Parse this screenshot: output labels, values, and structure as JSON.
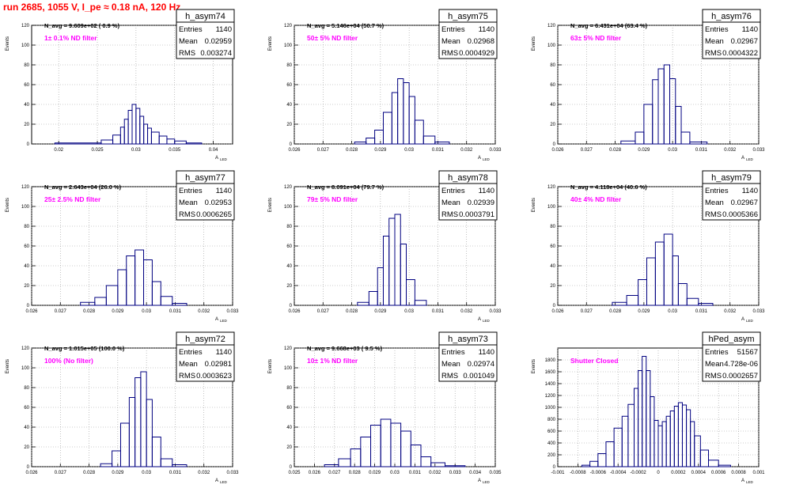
{
  "header": {
    "title": "run 2685,  1055 V, I_pe ≈ 0.18 nA, 120 Hz",
    "title_color": "#ff0000"
  },
  "common": {
    "ylabel": "Events",
    "xlabel": "A",
    "xlabel_sub": "LED",
    "stat_entries_label": "Entries",
    "stat_mean_label": "Mean",
    "stat_rms_label": "RMS",
    "hist_color": "#000080",
    "annotation_color": "#ff00ff"
  },
  "chart_data": [
    {
      "type": "histogram",
      "name": "h_asym74",
      "navg": "N_avg = 9.609e+02 ( 0.9 %)",
      "filter": "1± 0.1% ND filter",
      "entries": "1140",
      "mean": "0.02959",
      "rms": "0.003274",
      "xlim": [
        0.0165,
        0.0425
      ],
      "ylim": [
        0,
        120
      ],
      "xticks": [
        0.02,
        0.025,
        0.03,
        0.035,
        0.04
      ],
      "xtick_labels": [
        "0.02",
        "0.025",
        "0.03",
        "0.035",
        "0.04"
      ],
      "yticks": [
        0,
        20,
        40,
        60,
        80,
        100,
        120
      ],
      "bins": [
        [
          0.0195,
          0.0255,
          1
        ],
        [
          0.0255,
          0.027,
          4
        ],
        [
          0.027,
          0.028,
          9
        ],
        [
          0.028,
          0.0285,
          17
        ],
        [
          0.0285,
          0.029,
          25
        ],
        [
          0.029,
          0.0295,
          34
        ],
        [
          0.0295,
          0.03,
          40
        ],
        [
          0.03,
          0.0305,
          36
        ],
        [
          0.0305,
          0.031,
          28
        ],
        [
          0.031,
          0.0315,
          20
        ],
        [
          0.0315,
          0.032,
          16
        ],
        [
          0.032,
          0.033,
          12
        ],
        [
          0.033,
          0.034,
          8
        ],
        [
          0.034,
          0.035,
          5
        ],
        [
          0.035,
          0.0365,
          3
        ],
        [
          0.0365,
          0.0385,
          1
        ]
      ]
    },
    {
      "type": "histogram",
      "name": "h_asym75",
      "navg": "N_avg = 5.146e+04 (50.7 %)",
      "filter": "50± 5% ND filter",
      "entries": "1140",
      "mean": "0.02968",
      "rms": "0.0004929",
      "xlim": [
        0.026,
        0.033
      ],
      "ylim": [
        0,
        120
      ],
      "xticks": [
        0.026,
        0.027,
        0.028,
        0.029,
        0.03,
        0.031,
        0.032,
        0.033
      ],
      "xtick_labels": [
        "0.026",
        "0.027",
        "0.028",
        "0.029",
        "0.03",
        "0.031",
        "0.032",
        "0.033"
      ],
      "yticks": [
        0,
        20,
        40,
        60,
        80,
        100,
        120
      ],
      "bins": [
        [
          0.0281,
          0.0285,
          2
        ],
        [
          0.0285,
          0.0288,
          6
        ],
        [
          0.0288,
          0.0291,
          14
        ],
        [
          0.0291,
          0.0294,
          32
        ],
        [
          0.0294,
          0.0296,
          52
        ],
        [
          0.0296,
          0.0298,
          66
        ],
        [
          0.0298,
          0.03,
          62
        ],
        [
          0.03,
          0.0302,
          48
        ],
        [
          0.0302,
          0.0305,
          24
        ],
        [
          0.0305,
          0.0309,
          8
        ],
        [
          0.0309,
          0.0314,
          2
        ]
      ]
    },
    {
      "type": "histogram",
      "name": "h_asym76",
      "navg": "N_avg = 6.431e+04 (63.4 %)",
      "filter": "63± 5% ND filter",
      "entries": "1140",
      "mean": "0.02967",
      "rms": "0.0004322",
      "xlim": [
        0.026,
        0.033
      ],
      "ylim": [
        0,
        120
      ],
      "xticks": [
        0.026,
        0.027,
        0.028,
        0.029,
        0.03,
        0.031,
        0.032,
        0.033
      ],
      "xtick_labels": [
        "0.026",
        "0.027",
        "0.028",
        "0.029",
        "0.03",
        "0.031",
        "0.032",
        "0.033"
      ],
      "yticks": [
        0,
        20,
        40,
        60,
        80,
        100,
        120
      ],
      "bins": [
        [
          0.0282,
          0.0287,
          3
        ],
        [
          0.0287,
          0.029,
          12
        ],
        [
          0.029,
          0.0293,
          40
        ],
        [
          0.0293,
          0.0295,
          65
        ],
        [
          0.0295,
          0.0297,
          76
        ],
        [
          0.0297,
          0.0299,
          80
        ],
        [
          0.0299,
          0.0301,
          66
        ],
        [
          0.0301,
          0.0303,
          38
        ],
        [
          0.0303,
          0.0306,
          12
        ],
        [
          0.0306,
          0.0312,
          2
        ]
      ]
    },
    {
      "type": "histogram",
      "name": "h_asym77",
      "navg": "N_avg = 2.643e+04 (26.0 %)",
      "filter": "25± 2.5% ND filter",
      "entries": "1140",
      "mean": "0.02953",
      "rms": "0.0006265",
      "xlim": [
        0.026,
        0.033
      ],
      "ylim": [
        0,
        120
      ],
      "xticks": [
        0.026,
        0.027,
        0.028,
        0.029,
        0.03,
        0.031,
        0.032,
        0.033
      ],
      "xtick_labels": [
        "0.026",
        "0.027",
        "0.028",
        "0.029",
        "0.03",
        "0.031",
        "0.032",
        "0.033"
      ],
      "yticks": [
        0,
        20,
        40,
        60,
        80,
        100,
        120
      ],
      "bins": [
        [
          0.0277,
          0.0282,
          3
        ],
        [
          0.0282,
          0.0286,
          8
        ],
        [
          0.0286,
          0.029,
          20
        ],
        [
          0.029,
          0.0293,
          36
        ],
        [
          0.0293,
          0.0296,
          50
        ],
        [
          0.0296,
          0.0299,
          56
        ],
        [
          0.0299,
          0.0302,
          46
        ],
        [
          0.0302,
          0.0305,
          24
        ],
        [
          0.0305,
          0.0309,
          9
        ],
        [
          0.0309,
          0.0314,
          2
        ]
      ]
    },
    {
      "type": "histogram",
      "name": "h_asym78",
      "navg": "N_avg = 8.091e+04 (79.7 %)",
      "filter": "79± 5% ND filter",
      "entries": "1140",
      "mean": "0.02939",
      "rms": "0.0003791",
      "xlim": [
        0.026,
        0.033
      ],
      "ylim": [
        0,
        120
      ],
      "xticks": [
        0.026,
        0.027,
        0.028,
        0.029,
        0.03,
        0.031,
        0.032,
        0.033
      ],
      "xtick_labels": [
        "0.026",
        "0.027",
        "0.028",
        "0.029",
        "0.03",
        "0.031",
        "0.032",
        "0.033"
      ],
      "yticks": [
        0,
        20,
        40,
        60,
        80,
        100,
        120
      ],
      "bins": [
        [
          0.0282,
          0.0286,
          3
        ],
        [
          0.0286,
          0.0289,
          14
        ],
        [
          0.0289,
          0.0291,
          38
        ],
        [
          0.0291,
          0.0293,
          70
        ],
        [
          0.0293,
          0.0295,
          88
        ],
        [
          0.0295,
          0.0297,
          92
        ],
        [
          0.0297,
          0.0299,
          62
        ],
        [
          0.0299,
          0.0302,
          26
        ],
        [
          0.0302,
          0.0306,
          5
        ]
      ]
    },
    {
      "type": "histogram",
      "name": "h_asym79",
      "navg": "N_avg = 4.118e+04 (40.6 %)",
      "filter": "40± 4% ND filter",
      "entries": "1140",
      "mean": "0.02967",
      "rms": "0.0005366",
      "xlim": [
        0.026,
        0.033
      ],
      "ylim": [
        0,
        120
      ],
      "xticks": [
        0.026,
        0.027,
        0.028,
        0.029,
        0.03,
        0.031,
        0.032,
        0.033
      ],
      "xtick_labels": [
        "0.026",
        "0.027",
        "0.028",
        "0.029",
        "0.03",
        "0.031",
        "0.032",
        "0.033"
      ],
      "yticks": [
        0,
        20,
        40,
        60,
        80,
        100,
        120
      ],
      "bins": [
        [
          0.0279,
          0.0284,
          3
        ],
        [
          0.0284,
          0.0288,
          10
        ],
        [
          0.0288,
          0.0291,
          26
        ],
        [
          0.0291,
          0.0294,
          48
        ],
        [
          0.0294,
          0.0297,
          64
        ],
        [
          0.0297,
          0.03,
          72
        ],
        [
          0.03,
          0.0302,
          50
        ],
        [
          0.0302,
          0.0305,
          22
        ],
        [
          0.0305,
          0.0309,
          7
        ],
        [
          0.0309,
          0.0314,
          2
        ]
      ]
    },
    {
      "type": "histogram",
      "name": "h_asym72",
      "navg": "N_avg = 1.015e+05 (100.0 %)",
      "filter": "100% (No filter)",
      "entries": "1140",
      "mean": "0.02981",
      "rms": "0.0003623",
      "xlim": [
        0.026,
        0.033
      ],
      "ylim": [
        0,
        120
      ],
      "xticks": [
        0.026,
        0.027,
        0.028,
        0.029,
        0.03,
        0.031,
        0.032,
        0.033
      ],
      "xtick_labels": [
        "0.026",
        "0.027",
        "0.028",
        "0.029",
        "0.03",
        "0.031",
        "0.032",
        "0.033"
      ],
      "yticks": [
        0,
        20,
        40,
        60,
        80,
        100,
        120
      ],
      "bins": [
        [
          0.0284,
          0.0288,
          3
        ],
        [
          0.0288,
          0.0291,
          16
        ],
        [
          0.0291,
          0.0294,
          44
        ],
        [
          0.0294,
          0.0296,
          70
        ],
        [
          0.0296,
          0.0298,
          90
        ],
        [
          0.0298,
          0.03,
          96
        ],
        [
          0.03,
          0.0302,
          68
        ],
        [
          0.0302,
          0.0305,
          30
        ],
        [
          0.0305,
          0.0309,
          8
        ],
        [
          0.0309,
          0.0314,
          2
        ]
      ]
    },
    {
      "type": "histogram",
      "name": "h_asym73",
      "navg": "N_avg = 9.668e+03 ( 9.5 %)",
      "filter": "10± 1% ND filter",
      "entries": "1140",
      "mean": "0.02974",
      "rms": "0.001049",
      "xlim": [
        0.025,
        0.035
      ],
      "ylim": [
        0,
        120
      ],
      "xticks": [
        0.025,
        0.026,
        0.027,
        0.028,
        0.029,
        0.03,
        0.031,
        0.032,
        0.033,
        0.034,
        0.035
      ],
      "xtick_labels": [
        "0.025",
        "0.026",
        "0.027",
        "0.028",
        "0.029",
        "0.03",
        "0.031",
        "0.032",
        "0.033",
        "0.034",
        "0.035"
      ],
      "yticks": [
        0,
        20,
        40,
        60,
        80,
        100,
        120
      ],
      "bins": [
        [
          0.0265,
          0.0272,
          2
        ],
        [
          0.0272,
          0.0278,
          8
        ],
        [
          0.0278,
          0.0283,
          18
        ],
        [
          0.0283,
          0.0288,
          30
        ],
        [
          0.0288,
          0.0293,
          42
        ],
        [
          0.0293,
          0.0298,
          48
        ],
        [
          0.0298,
          0.0303,
          44
        ],
        [
          0.0303,
          0.0308,
          36
        ],
        [
          0.0308,
          0.0313,
          22
        ],
        [
          0.0313,
          0.0318,
          10
        ],
        [
          0.0318,
          0.0325,
          4
        ],
        [
          0.0325,
          0.0335,
          1
        ]
      ]
    },
    {
      "type": "histogram",
      "name": "hPed_asym",
      "navg": "",
      "filter": "Shutter Closed",
      "entries": "51567",
      "mean": "4.728e-06",
      "rms": "0.0002657",
      "xlim": [
        -0.001,
        0.001
      ],
      "ylim": [
        0,
        2000
      ],
      "xticks": [
        -0.001,
        -0.0008,
        -0.0006,
        -0.0004,
        -0.0002,
        0,
        0.0002,
        0.0004,
        0.0006,
        0.0008,
        0.001
      ],
      "xtick_labels": [
        "-0.001",
        "-0.0008",
        "-0.0006",
        "-0.0004",
        "-0.0002",
        "0",
        "0.0002",
        "0.0004",
        "0.0006",
        "0.0008",
        "0.001"
      ],
      "yticks": [
        0,
        200,
        400,
        600,
        800,
        1000,
        1200,
        1400,
        1600,
        1800
      ],
      "bins": [
        [
          -0.00076,
          -0.00068,
          25
        ],
        [
          -0.00068,
          -0.0006,
          90
        ],
        [
          -0.0006,
          -0.00052,
          220
        ],
        [
          -0.00052,
          -0.00044,
          420
        ],
        [
          -0.00044,
          -0.00036,
          650
        ],
        [
          -0.00036,
          -0.0003,
          850
        ],
        [
          -0.0003,
          -0.00024,
          1050
        ],
        [
          -0.00024,
          -0.0002,
          1320
        ],
        [
          -0.0002,
          -0.00016,
          1620
        ],
        [
          -0.00016,
          -0.00012,
          1860
        ],
        [
          -0.00012,
          -8e-05,
          1620
        ],
        [
          -8e-05,
          -4e-05,
          1180
        ],
        [
          -4e-05,
          0.0,
          780
        ],
        [
          0.0,
          4e-05,
          690
        ],
        [
          4e-05,
          8e-05,
          760
        ],
        [
          8e-05,
          0.00012,
          850
        ],
        [
          0.00012,
          0.00016,
          940
        ],
        [
          0.00016,
          0.0002,
          1020
        ],
        [
          0.0002,
          0.00024,
          1080
        ],
        [
          0.00024,
          0.00028,
          1040
        ],
        [
          0.00028,
          0.00032,
          960
        ],
        [
          0.00032,
          0.00036,
          760
        ],
        [
          0.00036,
          0.00042,
          520
        ],
        [
          0.00042,
          0.0005,
          280
        ],
        [
          0.0005,
          0.0006,
          110
        ],
        [
          0.0006,
          0.00072,
          25
        ]
      ]
    }
  ]
}
